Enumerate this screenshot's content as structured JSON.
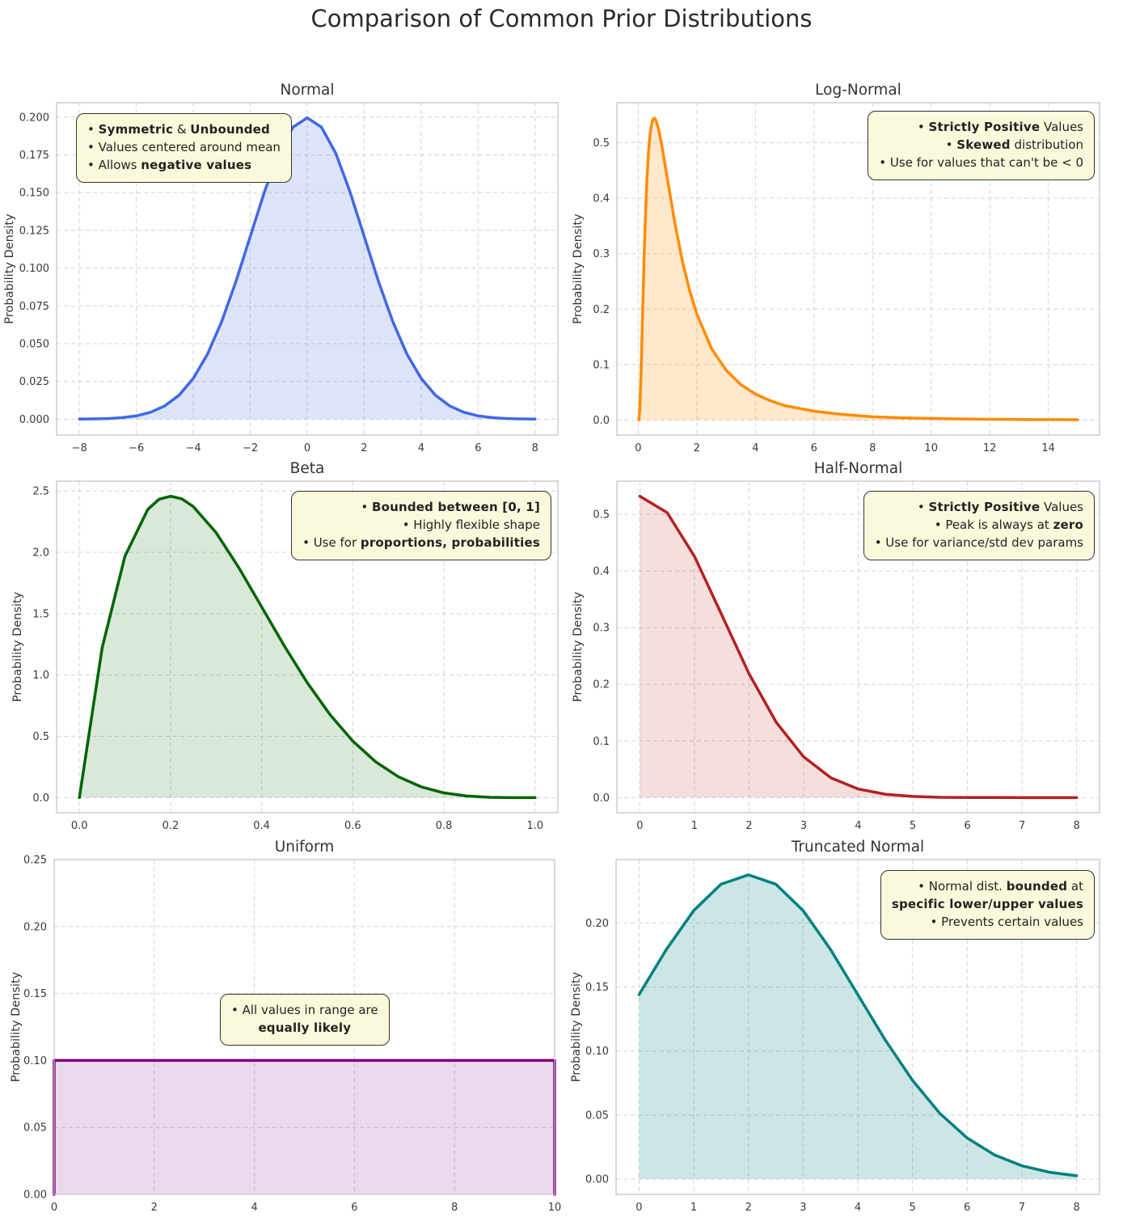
{
  "page_title": "Comparison of Common Prior Distributions",
  "colors": {
    "annotation_bg": "#fbf9dc",
    "annotation_border": "#333333",
    "grid": "#cccccc",
    "spine": "#c0c0c0",
    "text": "#333333",
    "tick_text": "#3a3a3a"
  },
  "ylabel": "Probability Density",
  "chart_data": [
    {
      "type": "area",
      "title": "Normal",
      "ylabel": "Probability Density",
      "line_color": "#4169e1",
      "fill_color": "rgba(65,105,225,0.18)",
      "xlim": [
        -8.8,
        8.8
      ],
      "ylim": [
        -0.0105,
        0.2095
      ],
      "xticks": [
        -8,
        -6,
        -4,
        -2,
        0,
        2,
        4,
        6,
        8
      ],
      "xtick_labels": [
        "−8",
        "−6",
        "−4",
        "−2",
        "0",
        "2",
        "4",
        "6",
        "8"
      ],
      "yticks": [
        0,
        0.025,
        0.05,
        0.075,
        0.1,
        0.125,
        0.15,
        0.175,
        0.2
      ],
      "ytick_labels": [
        "0.000",
        "0.025",
        "0.050",
        "0.075",
        "0.100",
        "0.125",
        "0.150",
        "0.175",
        "0.200"
      ],
      "x": [
        -8,
        -7.5,
        -7,
        -6.5,
        -6,
        -5.5,
        -5,
        -4.5,
        -4,
        -3.5,
        -3,
        -2.5,
        -2,
        -1.5,
        -1,
        -0.5,
        0,
        0.5,
        1,
        1.5,
        2,
        2.5,
        3,
        3.5,
        4,
        4.5,
        5,
        5.5,
        6,
        6.5,
        7,
        7.5,
        8
      ],
      "y": [
        0.0001,
        0.0002,
        0.0004,
        0.001,
        0.0022,
        0.0046,
        0.0088,
        0.0159,
        0.027,
        0.0431,
        0.0648,
        0.0913,
        0.121,
        0.1506,
        0.1761,
        0.1933,
        0.1995,
        0.1933,
        0.1761,
        0.1506,
        0.121,
        0.0913,
        0.0648,
        0.0431,
        0.027,
        0.0159,
        0.0088,
        0.0046,
        0.0022,
        0.001,
        0.0004,
        0.0002,
        0.0001
      ],
      "annotation": {
        "align": "left",
        "lines": [
          [
            [
              "• ",
              0
            ],
            [
              "Symmetric",
              1
            ],
            [
              " & ",
              0
            ],
            [
              "Unbounded",
              1
            ]
          ],
          [
            [
              "• Values centered around mean",
              0
            ]
          ],
          [
            [
              "• Allows ",
              0
            ],
            [
              "negative values",
              1
            ]
          ]
        ]
      }
    },
    {
      "type": "area",
      "title": "Log-Normal",
      "ylabel": "Probability Density",
      "line_color": "#ff8c00",
      "fill_color": "rgba(255,140,0,0.2)",
      "xlim": [
        -0.73,
        15.75
      ],
      "ylim": [
        -0.027,
        0.572
      ],
      "xticks": [
        0,
        2,
        4,
        6,
        8,
        10,
        12,
        14
      ],
      "xtick_labels": [
        "0",
        "2",
        "4",
        "6",
        "8",
        "10",
        "12",
        "14"
      ],
      "yticks": [
        0,
        0.1,
        0.2,
        0.3,
        0.4,
        0.5
      ],
      "ytick_labels": [
        "0.0",
        "0.1",
        "0.2",
        "0.3",
        "0.4",
        "0.5"
      ],
      "x": [
        0.02,
        0.05,
        0.1,
        0.15,
        0.2,
        0.25,
        0.3,
        0.35,
        0.4,
        0.45,
        0.5,
        0.55,
        0.6,
        0.7,
        0.8,
        0.9,
        1,
        1.25,
        1.5,
        1.75,
        2,
        2.5,
        3,
        3.5,
        4,
        4.5,
        5,
        6,
        7,
        8,
        9,
        10,
        11,
        12,
        13,
        14,
        15
      ],
      "y": [
        0.0004,
        0.016,
        0.093,
        0.196,
        0.294,
        0.375,
        0.438,
        0.483,
        0.514,
        0.532,
        0.542,
        0.544,
        0.541,
        0.523,
        0.496,
        0.465,
        0.433,
        0.355,
        0.288,
        0.234,
        0.191,
        0.129,
        0.09,
        0.064,
        0.047,
        0.035,
        0.026,
        0.016,
        0.01,
        0.006,
        0.004,
        0.003,
        0.002,
        0.0015,
        0.001,
        0.0008,
        0.0006
      ],
      "annotation": {
        "align": "right",
        "lines": [
          [
            [
              "• ",
              0
            ],
            [
              "Strictly Positive",
              1
            ],
            [
              " Values",
              0
            ]
          ],
          [
            [
              "• ",
              0
            ],
            [
              "Skewed",
              1
            ],
            [
              " distribution",
              0
            ]
          ],
          [
            [
              "• Use for values that can't be < 0",
              0
            ]
          ]
        ]
      }
    },
    {
      "type": "area",
      "title": "Beta",
      "ylabel": "Probability Density",
      "line_color": "#006400",
      "fill_color": "rgba(0,100,0,0.15)",
      "xlim": [
        -0.05,
        1.05
      ],
      "ylim": [
        -0.1229,
        2.5805
      ],
      "xticks": [
        0,
        0.2,
        0.4,
        0.6,
        0.8,
        1
      ],
      "xtick_labels": [
        "0.0",
        "0.2",
        "0.4",
        "0.6",
        "0.8",
        "1.0"
      ],
      "yticks": [
        0,
        0.5,
        1,
        1.5,
        2,
        2.5
      ],
      "ytick_labels": [
        "0.0",
        "0.5",
        "1.0",
        "1.5",
        "2.0",
        "2.5"
      ],
      "x": [
        0,
        0.05,
        0.1,
        0.15,
        0.175,
        0.2,
        0.225,
        0.25,
        0.3,
        0.35,
        0.4,
        0.45,
        0.5,
        0.55,
        0.6,
        0.65,
        0.7,
        0.75,
        0.8,
        0.85,
        0.9,
        0.95,
        1
      ],
      "y": [
        0,
        1.2218,
        1.9683,
        2.3491,
        2.4334,
        2.4576,
        2.4357,
        2.373,
        2.1609,
        1.8743,
        1.5552,
        1.2354,
        0.9375,
        0.6766,
        0.4608,
        0.2926,
        0.1701,
        0.0879,
        0.0384,
        0.0129,
        0.0027,
        0.0002,
        0
      ],
      "annotation": {
        "align": "right",
        "lines": [
          [
            [
              "• ",
              0
            ],
            [
              "Bounded between [0, 1]",
              1
            ]
          ],
          [
            [
              "• Highly flexible shape",
              0
            ]
          ],
          [
            [
              "• Use for ",
              0
            ],
            [
              "proportions, probabilities",
              1
            ]
          ]
        ]
      }
    },
    {
      "type": "area",
      "title": "Half-Normal",
      "ylabel": "Probability Density",
      "line_color": "#b22222",
      "fill_color": "rgba(178,34,34,0.15)",
      "xlim": [
        -0.42,
        8.42
      ],
      "ylim": [
        -0.0266,
        0.5585
      ],
      "xticks": [
        0,
        1,
        2,
        3,
        4,
        5,
        6,
        7,
        8
      ],
      "xtick_labels": [
        "0",
        "1",
        "2",
        "3",
        "4",
        "5",
        "6",
        "7",
        "8"
      ],
      "yticks": [
        0,
        0.1,
        0.2,
        0.3,
        0.4,
        0.5
      ],
      "ytick_labels": [
        "0.0",
        "0.1",
        "0.2",
        "0.3",
        "0.4",
        "0.5"
      ],
      "x": [
        0,
        0.5,
        1,
        1.5,
        2,
        2.5,
        3,
        3.5,
        4,
        4.5,
        5,
        5.5,
        6,
        6.5,
        7,
        7.5,
        8
      ],
      "y": [
        0.5319,
        0.5031,
        0.4259,
        0.3226,
        0.2187,
        0.1327,
        0.072,
        0.0349,
        0.0152,
        0.0059,
        0.0021,
        0.0006,
        0.0002,
        0.0001,
        0,
        0,
        0
      ],
      "annotation": {
        "align": "right",
        "lines": [
          [
            [
              "• ",
              0
            ],
            [
              "Strictly Positive",
              1
            ],
            [
              " Values",
              0
            ]
          ],
          [
            [
              "• Peak is always at ",
              0
            ],
            [
              "zero",
              1
            ]
          ],
          [
            [
              "• Use for variance/std dev params",
              0
            ]
          ]
        ]
      }
    },
    {
      "type": "area",
      "title": "Uniform",
      "ylabel": "Probability Density",
      "line_color": "#800080",
      "fill_color": "rgba(128,0,128,0.15)",
      "xlim": [
        0,
        10
      ],
      "ylim": [
        0,
        0.25
      ],
      "xticks": [
        0,
        2,
        4,
        6,
        8,
        10
      ],
      "xtick_labels": [
        "0",
        "2",
        "4",
        "6",
        "8",
        "10"
      ],
      "yticks": [
        0,
        0.05,
        0.1,
        0.15,
        0.2,
        0.25
      ],
      "ytick_labels": [
        "0.00",
        "0.05",
        "0.10",
        "0.15",
        "0.20",
        "0.25"
      ],
      "x": [
        0,
        0,
        10,
        10
      ],
      "y": [
        0,
        0.1,
        0.1,
        0
      ],
      "annotation": {
        "align": "center",
        "lines": [
          [
            [
              "• All values in range are",
              0
            ]
          ],
          [
            [
              "equally likely",
              1
            ]
          ]
        ]
      }
    },
    {
      "type": "area",
      "title": "Truncated Normal",
      "ylabel": "Probability Density",
      "line_color": "#008080",
      "fill_color": "rgba(0,128,128,0.2)",
      "xlim": [
        -0.42,
        8.42
      ],
      "ylim": [
        -0.0119,
        0.2494
      ],
      "xticks": [
        0,
        1,
        2,
        3,
        4,
        5,
        6,
        7,
        8
      ],
      "xtick_labels": [
        "0",
        "1",
        "2",
        "3",
        "4",
        "5",
        "6",
        "7",
        "8"
      ],
      "yticks": [
        0,
        0.05,
        0.1,
        0.15,
        0.2
      ],
      "ytick_labels": [
        "0.00",
        "0.05",
        "0.10",
        "0.15",
        "0.20"
      ],
      "x": [
        0,
        0.5,
        1,
        1.5,
        2,
        2.5,
        3,
        3.5,
        4,
        4.5,
        5,
        5.5,
        6,
        6.5,
        7,
        7.5,
        8
      ],
      "y": [
        0.144,
        0.1793,
        0.2096,
        0.2302,
        0.2375,
        0.2302,
        0.2096,
        0.1793,
        0.144,
        0.1087,
        0.0771,
        0.0513,
        0.0321,
        0.0189,
        0.0104,
        0.0054,
        0.0026
      ],
      "annotation": {
        "align": "right",
        "lines": [
          [
            [
              "• Normal dist. ",
              0
            ],
            [
              "bounded",
              1
            ],
            [
              " at",
              0
            ]
          ],
          [
            [
              "specific lower/upper values",
              1
            ]
          ],
          [
            [
              "• Prevents certain values",
              0
            ]
          ]
        ]
      }
    }
  ]
}
